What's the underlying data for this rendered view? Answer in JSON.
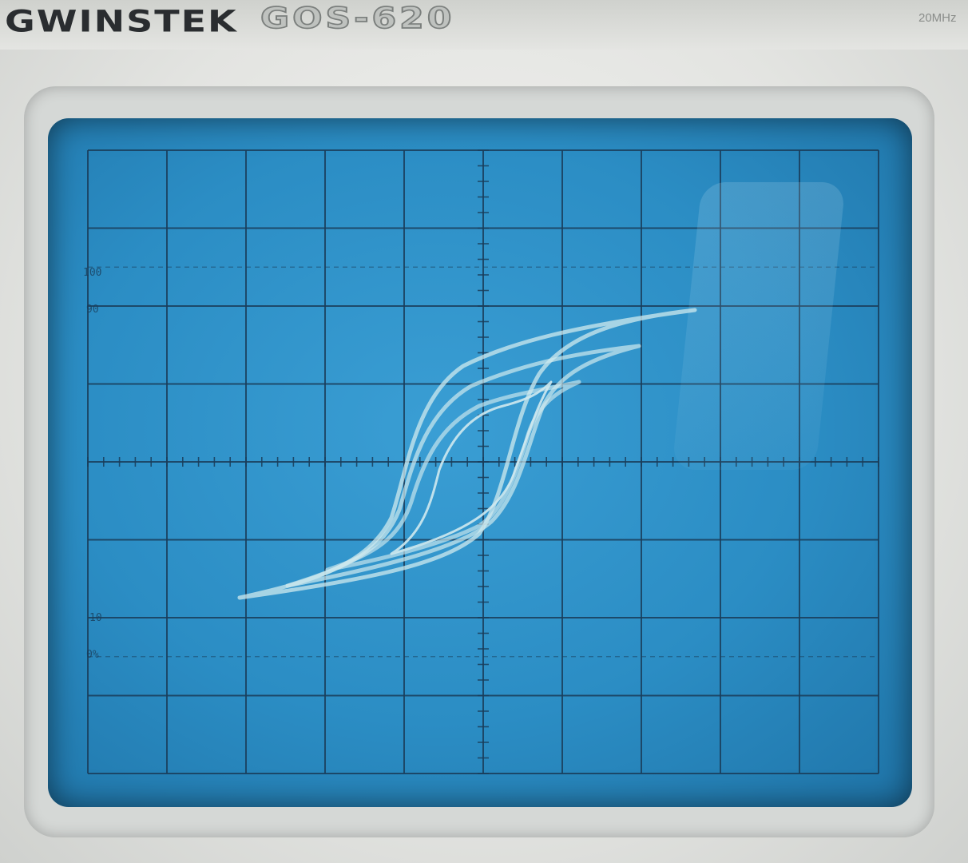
{
  "instrument": {
    "brand": "GWINSTEK",
    "model": "GOS-620",
    "spec": "20MHz"
  },
  "graticule": {
    "label_100": "100",
    "label_90": "90",
    "label_10": "10",
    "label_0": "0%"
  },
  "colors": {
    "screen": "#2b8dc4",
    "grid": "#1a3d5a",
    "trace": "#cfe9ee"
  },
  "display": {
    "mode": "X-Y",
    "content": "hysteresis loops (nested)"
  }
}
